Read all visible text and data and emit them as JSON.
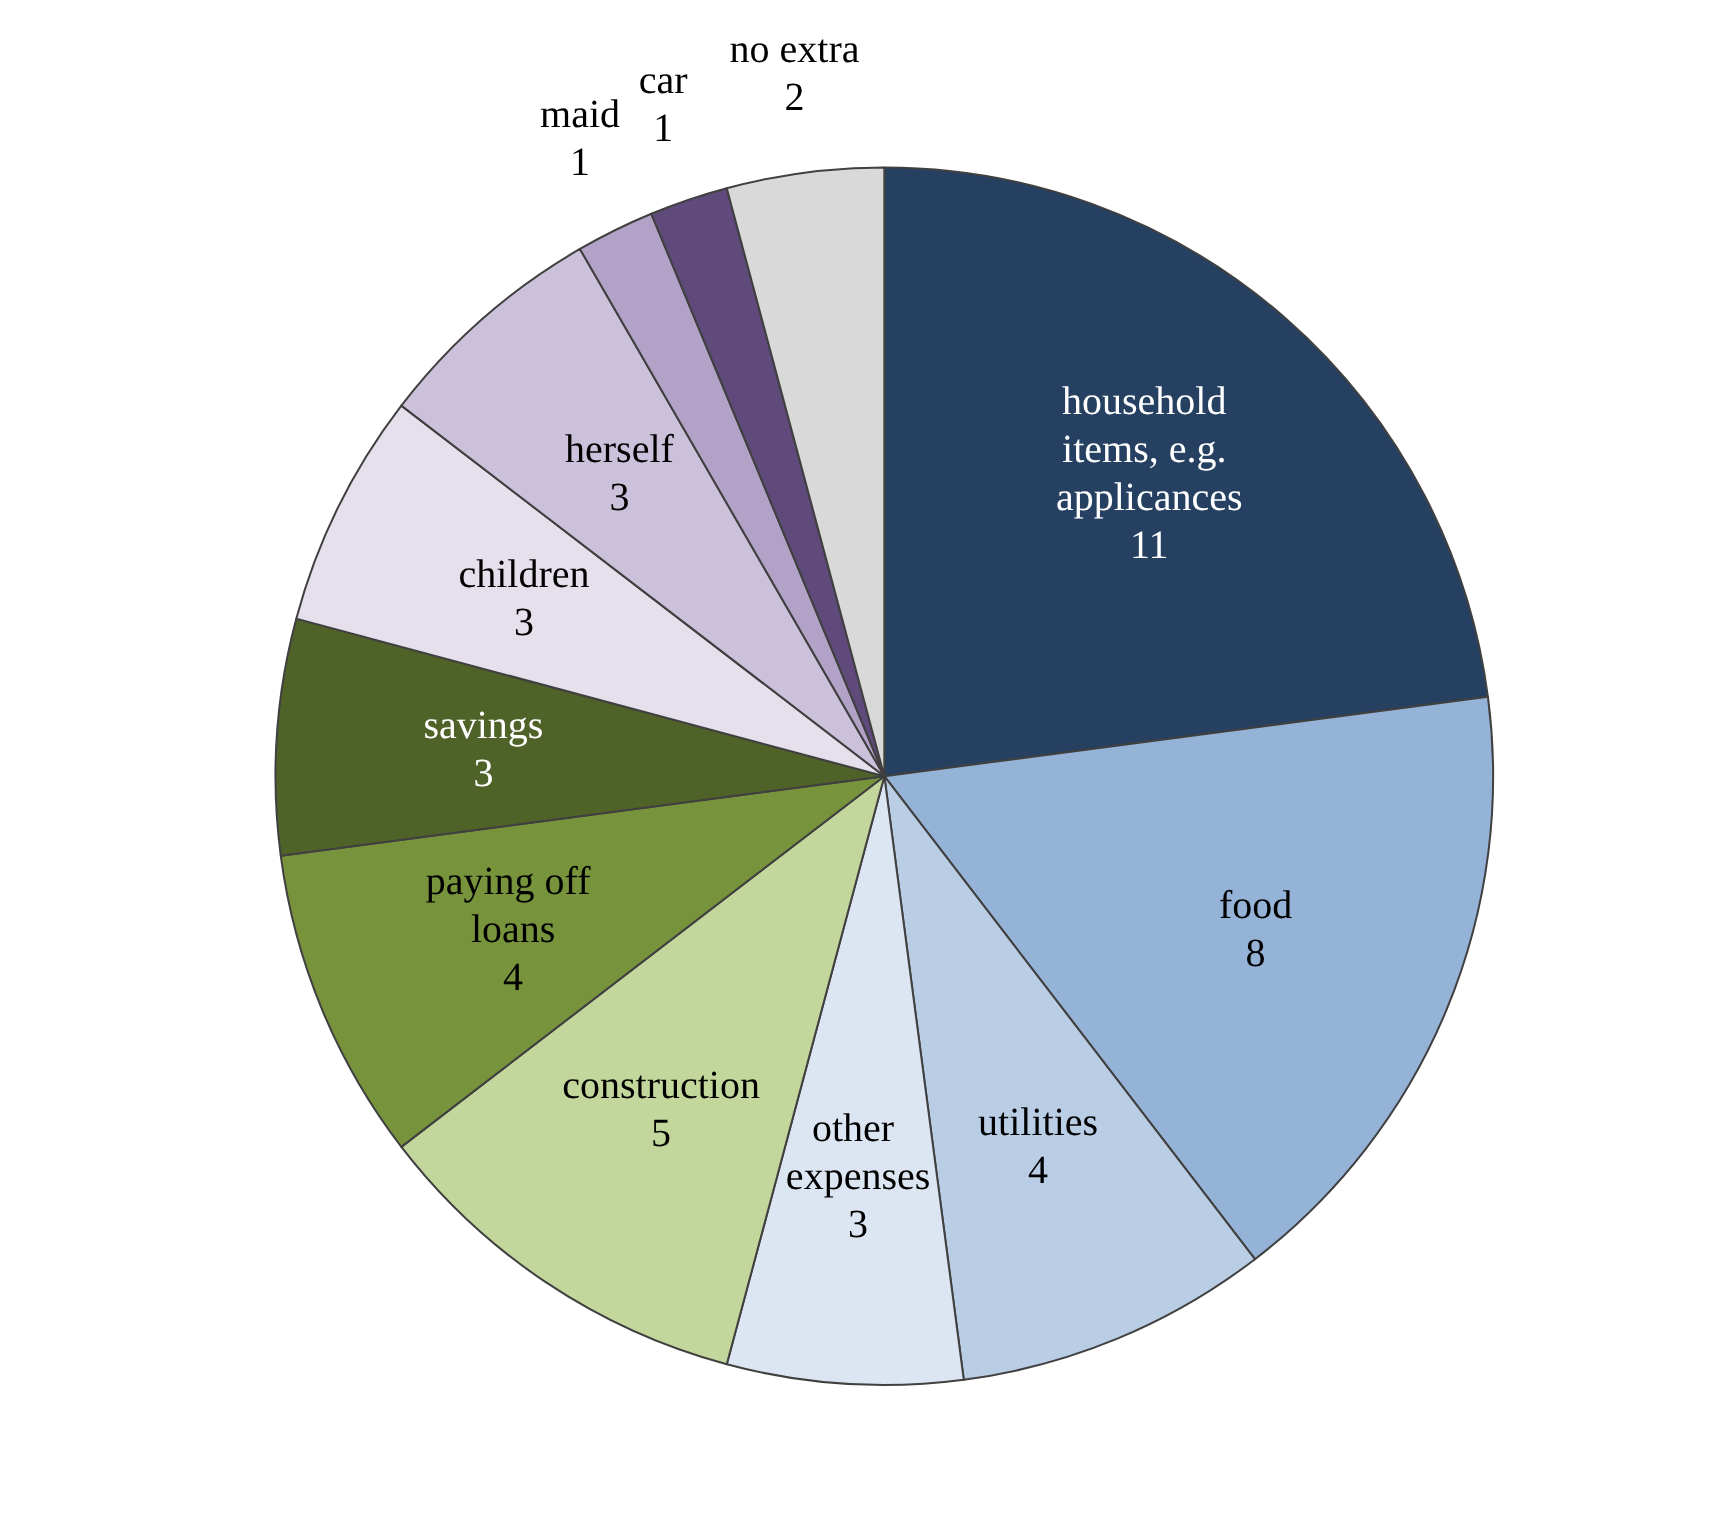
{
  "chart_data": {
    "type": "pie",
    "categories": [
      "household items, e.g. applicances",
      "food",
      "utilities",
      "other expenses",
      "construction",
      "paying off loans",
      "savings",
      "children",
      "herself",
      "maid",
      "car",
      "no extra"
    ],
    "values": [
      11,
      8,
      4,
      3,
      5,
      4,
      3,
      3,
      3,
      1,
      1,
      2
    ],
    "colors": [
      "#254061",
      "#95b3d7",
      "#b9cde5",
      "#dce6f2",
      "#c3d69b",
      "#77933c",
      "#4f6228",
      "#e6e0ec",
      "#ccc1da",
      "#b3a2c7",
      "#604a7b",
      "#d9d9d9"
    ],
    "data_labels": true,
    "legend": false
  }
}
